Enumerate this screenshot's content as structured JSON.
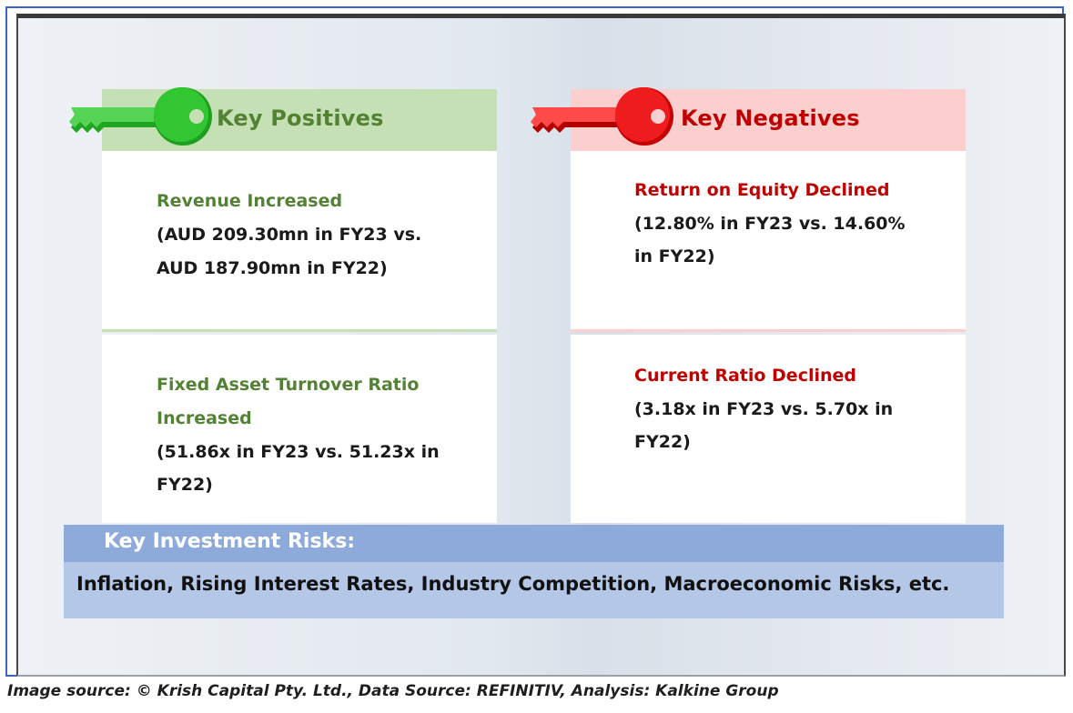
{
  "positives": {
    "header": "Key Positives",
    "accent": "#548235",
    "key_color": "#2fbf2f",
    "items": [
      {
        "title": "Revenue Increased",
        "lines": [
          "(AUD 209.30mn in FY23 vs.",
          "AUD 187.90mn in FY22)"
        ]
      },
      {
        "title_lines": [
          "Fixed Asset Turnover Ratio",
          "Increased"
        ],
        "lines": [
          "(51.86x in FY23 vs. 51.23x in",
          "FY22)"
        ]
      }
    ]
  },
  "negatives": {
    "header": "Key Negatives",
    "accent": "#c00000",
    "key_color": "#ee1c1c",
    "items": [
      {
        "title": "Return on Equity Declined",
        "lines": [
          "(12.80% in FY23 vs. 14.60%",
          "in FY22)"
        ]
      },
      {
        "title": "Current Ratio Declined",
        "lines": [
          "(3.18x in FY23 vs. 5.70x in",
          "FY22)"
        ]
      }
    ]
  },
  "risks": {
    "header": "Key Investment Risks:",
    "body": "Inflation, Rising Interest Rates, Industry Competition, Macroeconomic Risks, etc."
  },
  "caption": "Image source: © Krish Capital Pty. Ltd., Data Source: REFINITIV, Analysis: Kalkine Group"
}
